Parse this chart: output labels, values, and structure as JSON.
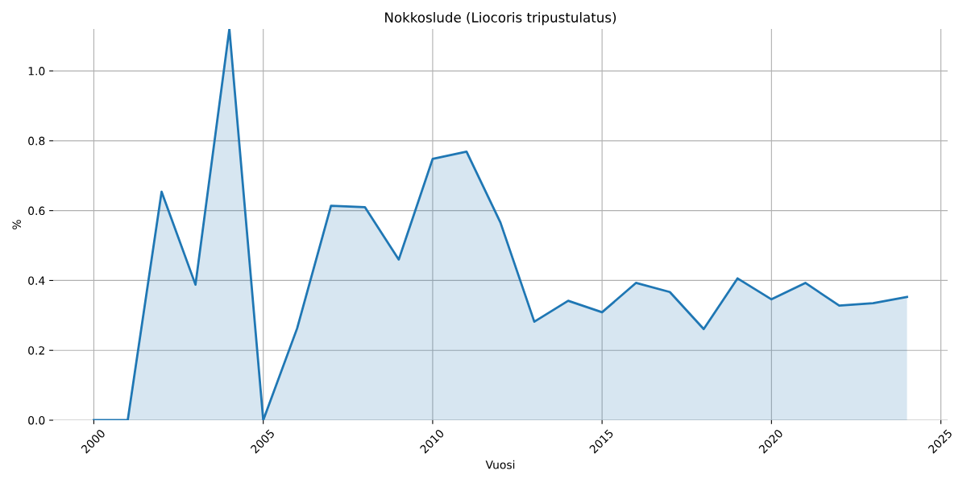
{
  "chart_data": {
    "type": "area",
    "title": "Nokkoslude (Liocoris tripustulatus)",
    "xlabel": "Vuosi",
    "ylabel": "%",
    "x": [
      2000,
      2001,
      2002,
      2003,
      2004,
      2005,
      2006,
      2007,
      2008,
      2009,
      2010,
      2011,
      2012,
      2013,
      2014,
      2015,
      2016,
      2017,
      2018,
      2019,
      2020,
      2021,
      2022,
      2023,
      2024
    ],
    "series": [
      {
        "color": "#1f77b4",
        "values": [
          0,
          0,
          0.654,
          0.388,
          1.12,
          0,
          0.263,
          0.614,
          0.61,
          0.46,
          0.748,
          0.769,
          0.566,
          0.282,
          0.342,
          0.309,
          0.393,
          0.367,
          0.261,
          0.406,
          0.346,
          0.393,
          0.328,
          0.335,
          0.353
        ]
      }
    ],
    "xlim": [
      1998.8,
      2025.2
    ],
    "xticks": [
      2000,
      2005,
      2010,
      2015,
      2020,
      2025
    ],
    "ylim": [
      0,
      1.12
    ],
    "yticks": [
      {
        "value": 0,
        "label": "0.0"
      },
      0.2,
      0.4,
      0.6,
      0.8,
      {
        "value": 1,
        "label": "1.0"
      }
    ],
    "grid": true,
    "legend": false,
    "marker": "none",
    "line_style": "solid"
  }
}
